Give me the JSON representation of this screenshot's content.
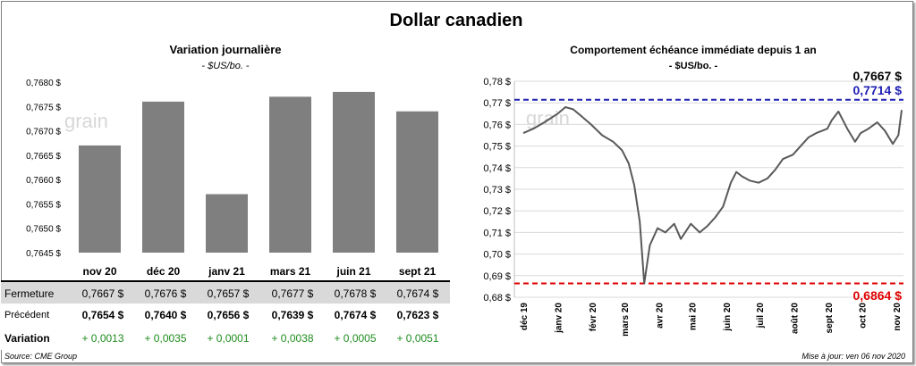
{
  "title": "Dollar canadien",
  "left_chart": {
    "title": "Variation  journalière",
    "subtitle": "- $US/bo. -",
    "watermark": "grain",
    "bar_color": "#7f7f7f",
    "y_ticks": [
      "0,7680 $",
      "0,7675 $",
      "0,7670 $",
      "0,7665 $",
      "0,7660 $",
      "0,7655 $",
      "0,7650 $",
      "0,7645 $"
    ]
  },
  "right_chart": {
    "title": "Comportement échéance immédiate depuis 1 an",
    "subtitle": "- $US/bo. -",
    "watermark": "grain",
    "last_value_label": "0,7667 $",
    "high_label": "0,7714 $",
    "low_label": "0,6864 $",
    "high_color": "#1f1fb4",
    "low_color": "#e00000",
    "line_color": "#595959",
    "y_ticks": [
      "0,78 $",
      "0,77 $",
      "0,76 $",
      "0,75 $",
      "0,74 $",
      "0,73 $",
      "0,72 $",
      "0,71 $",
      "0,70 $",
      "0,69 $",
      "0,68 $"
    ],
    "x_ticks": [
      "déc 19",
      "janv 20",
      "févr 20",
      "mars 20",
      "avr 20",
      "mai 20",
      "juin 20",
      "juil 20",
      "août 20",
      "sept 20",
      "oct 20",
      "nov 20"
    ]
  },
  "table": {
    "rows": [
      {
        "label": "Fermeture",
        "values": [
          "0,7667  $",
          "0,7676  $",
          "0,7657  $",
          "0,7677  $",
          "0,7678  $",
          "0,7674  $"
        ]
      },
      {
        "label": "Précédent",
        "values": [
          "0,7654  $",
          "0,7640  $",
          "0,7656  $",
          "0,7639  $",
          "0,7674  $",
          "0,7623  $"
        ]
      },
      {
        "label": "Variation",
        "values": [
          "+ 0,0013",
          "+ 0,0035",
          "+ 0,0001",
          "+ 0,0038",
          "+ 0,0005",
          "+ 0,0051"
        ]
      }
    ],
    "positive_color": "#1e8c1e"
  },
  "footer": {
    "source": "Source: CME Group",
    "updated": "Mise à jour: ven 06 nov 2020"
  },
  "chart_data": [
    {
      "type": "bar",
      "title": "Variation  journalière",
      "ylabel": "$US/bo.",
      "categories": [
        "nov 20",
        "déc 20",
        "janv 21",
        "mars 21",
        "juin 21",
        "sept 21"
      ],
      "values": [
        0.7667,
        0.7676,
        0.7657,
        0.7677,
        0.7678,
        0.7674
      ],
      "ylim": [
        0.7645,
        0.768
      ],
      "grid": false
    },
    {
      "type": "line",
      "title": "Comportement échéance immédiate depuis 1 an",
      "ylabel": "$US/bo.",
      "ylim": [
        0.68,
        0.78
      ],
      "grid": true,
      "x": [
        "2019-12-01",
        "2019-12-10",
        "2019-12-20",
        "2020-01-01",
        "2020-01-08",
        "2020-01-15",
        "2020-01-22",
        "2020-01-31",
        "2020-02-10",
        "2020-02-20",
        "2020-02-28",
        "2020-03-05",
        "2020-03-10",
        "2020-03-15",
        "2020-03-19",
        "2020-03-24",
        "2020-03-31",
        "2020-04-07",
        "2020-04-15",
        "2020-04-21",
        "2020-04-30",
        "2020-05-08",
        "2020-05-15",
        "2020-05-22",
        "2020-05-29",
        "2020-06-05",
        "2020-06-10",
        "2020-06-15",
        "2020-06-22",
        "2020-06-30",
        "2020-07-08",
        "2020-07-15",
        "2020-07-22",
        "2020-07-31",
        "2020-08-07",
        "2020-08-14",
        "2020-08-21",
        "2020-08-31",
        "2020-09-04",
        "2020-09-10",
        "2020-09-18",
        "2020-09-25",
        "2020-09-30",
        "2020-10-07",
        "2020-10-15",
        "2020-10-22",
        "2020-10-29",
        "2020-11-03",
        "2020-11-06"
      ],
      "series": [
        {
          "values": [
            0.756,
            0.758,
            0.761,
            0.765,
            0.768,
            0.767,
            0.764,
            0.76,
            0.755,
            0.752,
            0.748,
            0.742,
            0.732,
            0.715,
            0.6864,
            0.704,
            0.712,
            0.71,
            0.714,
            0.707,
            0.714,
            0.71,
            0.713,
            0.717,
            0.722,
            0.733,
            0.738,
            0.736,
            0.734,
            0.733,
            0.735,
            0.739,
            0.744,
            0.746,
            0.75,
            0.754,
            0.756,
            0.758,
            0.762,
            0.766,
            0.758,
            0.752,
            0.756,
            0.758,
            0.761,
            0.757,
            0.751,
            0.755,
            0.7667
          ]
        }
      ],
      "annotations": [
        "0,7714 $",
        "0,6864 $",
        "0,7667 $"
      ]
    }
  ]
}
